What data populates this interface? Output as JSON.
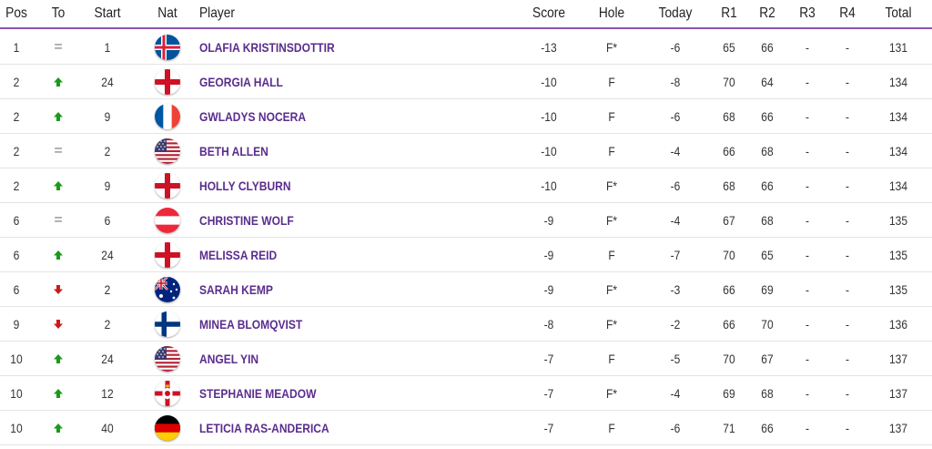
{
  "header": {
    "pos": "Pos",
    "to": "To",
    "start": "Start",
    "nat": "Nat",
    "player": "Player",
    "score": "Score",
    "hole": "Hole",
    "today": "Today",
    "r1": "R1",
    "r2": "R2",
    "r3": "R3",
    "r4": "R4",
    "total": "Total"
  },
  "colors": {
    "accent": "#8a56b0",
    "player_link": "#5b2d8e",
    "up": "#1a9a1a",
    "down": "#cc1a1a"
  },
  "rows": [
    {
      "pos": "1",
      "to": "same",
      "start": "1",
      "nat": "iceland-flag-icon",
      "player": "OLAFIA KRISTINSDOTTIR",
      "score": "-13",
      "hole": "F*",
      "today": "-6",
      "r1": "65",
      "r2": "66",
      "r3": "-",
      "r4": "-",
      "total": "131"
    },
    {
      "pos": "2",
      "to": "up",
      "start": "24",
      "nat": "england-flag-icon",
      "player": "GEORGIA HALL",
      "score": "-10",
      "hole": "F",
      "today": "-8",
      "r1": "70",
      "r2": "64",
      "r3": "-",
      "r4": "-",
      "total": "134"
    },
    {
      "pos": "2",
      "to": "up",
      "start": "9",
      "nat": "france-flag-icon",
      "player": "GWLADYS NOCERA",
      "score": "-10",
      "hole": "F",
      "today": "-6",
      "r1": "68",
      "r2": "66",
      "r3": "-",
      "r4": "-",
      "total": "134"
    },
    {
      "pos": "2",
      "to": "same",
      "start": "2",
      "nat": "usa-flag-icon",
      "player": "BETH ALLEN",
      "score": "-10",
      "hole": "F",
      "today": "-4",
      "r1": "66",
      "r2": "68",
      "r3": "-",
      "r4": "-",
      "total": "134"
    },
    {
      "pos": "2",
      "to": "up",
      "start": "9",
      "nat": "england-flag-icon",
      "player": "HOLLY CLYBURN",
      "score": "-10",
      "hole": "F*",
      "today": "-6",
      "r1": "68",
      "r2": "66",
      "r3": "-",
      "r4": "-",
      "total": "134"
    },
    {
      "pos": "6",
      "to": "same",
      "start": "6",
      "nat": "austria-flag-icon",
      "player": "CHRISTINE WOLF",
      "score": "-9",
      "hole": "F*",
      "today": "-4",
      "r1": "67",
      "r2": "68",
      "r3": "-",
      "r4": "-",
      "total": "135"
    },
    {
      "pos": "6",
      "to": "up",
      "start": "24",
      "nat": "england-flag-icon",
      "player": "MELISSA REID",
      "score": "-9",
      "hole": "F",
      "today": "-7",
      "r1": "70",
      "r2": "65",
      "r3": "-",
      "r4": "-",
      "total": "135"
    },
    {
      "pos": "6",
      "to": "down",
      "start": "2",
      "nat": "australia-flag-icon",
      "player": "SARAH KEMP",
      "score": "-9",
      "hole": "F*",
      "today": "-3",
      "r1": "66",
      "r2": "69",
      "r3": "-",
      "r4": "-",
      "total": "135"
    },
    {
      "pos": "9",
      "to": "down",
      "start": "2",
      "nat": "finland-flag-icon",
      "player": "MINEA BLOMQVIST",
      "score": "-8",
      "hole": "F*",
      "today": "-2",
      "r1": "66",
      "r2": "70",
      "r3": "-",
      "r4": "-",
      "total": "136"
    },
    {
      "pos": "10",
      "to": "up",
      "start": "24",
      "nat": "usa-flag-icon",
      "player": "ANGEL YIN",
      "score": "-7",
      "hole": "F",
      "today": "-5",
      "r1": "70",
      "r2": "67",
      "r3": "-",
      "r4": "-",
      "total": "137"
    },
    {
      "pos": "10",
      "to": "up",
      "start": "12",
      "nat": "northern-ireland-flag-icon",
      "player": "STEPHANIE MEADOW",
      "score": "-7",
      "hole": "F*",
      "today": "-4",
      "r1": "69",
      "r2": "68",
      "r3": "-",
      "r4": "-",
      "total": "137"
    },
    {
      "pos": "10",
      "to": "up",
      "start": "40",
      "nat": "germany-flag-icon",
      "player": "LETICIA RAS-ANDERICA",
      "score": "-7",
      "hole": "F",
      "today": "-6",
      "r1": "71",
      "r2": "66",
      "r3": "-",
      "r4": "-",
      "total": "137"
    }
  ]
}
